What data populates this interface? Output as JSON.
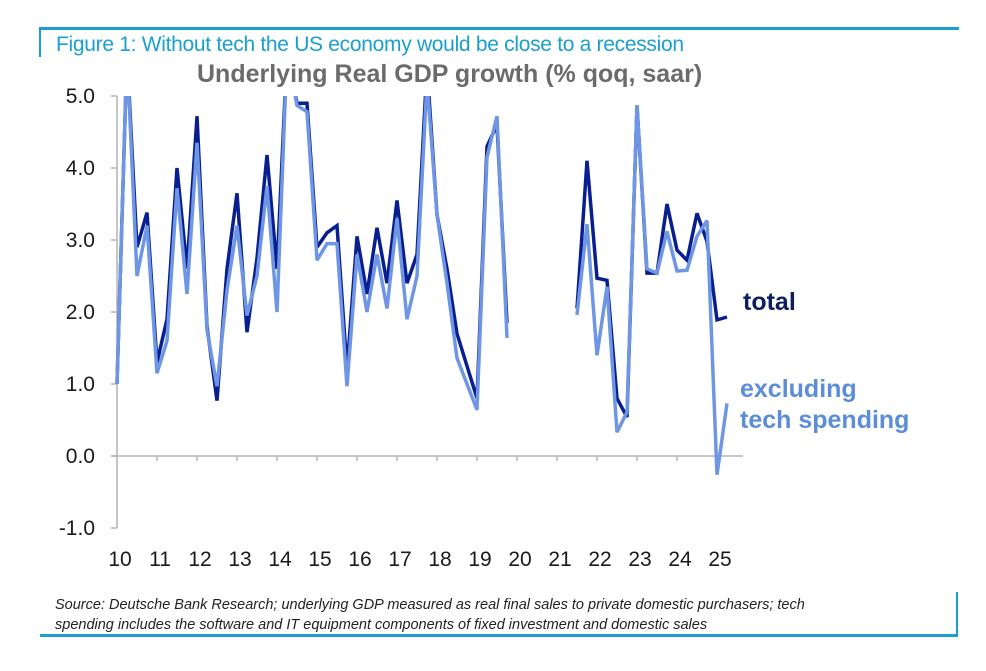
{
  "figure": {
    "label": "Figure 1: Without tech the US economy would be close to a recession",
    "source_line1": "Source: Deutsche Bank Research; underlying GDP measured as real final sales to private domestic purchasers; tech",
    "source_line2": "spending includes the software and IT equipment components of fixed investment and domestic sales"
  },
  "colors": {
    "accent": "#1a9fd1",
    "total": "#0a1f8f",
    "excluding_tech": "#6f96e4",
    "axis": "#b3b3b3"
  },
  "chart_data": {
    "type": "line",
    "title": "Underlying Real GDP growth (% qoq, saar)",
    "xlabel": "",
    "ylabel": "",
    "ylim": [
      -1.0,
      5.0
    ],
    "yticks": [
      "5.0",
      "4.0",
      "3.0",
      "2.0",
      "1.0",
      "0.0",
      "-1.0"
    ],
    "ytick_values": [
      5,
      4,
      3,
      2,
      1,
      0,
      -1
    ],
    "xticks": [
      "10",
      "11",
      "12",
      "13",
      "14",
      "15",
      "16",
      "17",
      "18",
      "19",
      "20",
      "21",
      "22",
      "23",
      "24",
      "25"
    ],
    "x_start": "2010Q1",
    "frequency": "quarterly",
    "legend": "right",
    "grid": false,
    "series": [
      {
        "name": "total",
        "values": [
          1.0,
          5.6,
          2.9,
          3.38,
          1.3,
          1.9,
          4.0,
          2.6,
          4.72,
          1.8,
          0.77,
          2.6,
          3.65,
          1.72,
          2.75,
          4.18,
          2.6,
          5.6,
          4.9,
          4.9,
          2.9,
          3.1,
          3.2,
          1.2,
          3.05,
          2.25,
          3.17,
          2.4,
          3.55,
          2.4,
          2.8,
          5.4,
          3.35,
          2.6,
          1.7,
          1.25,
          0.8,
          4.3,
          4.6,
          1.85,
          null,
          null,
          null,
          null,
          null,
          null,
          2.05,
          4.1,
          2.47,
          2.44,
          0.8,
          0.54,
          4.87,
          2.54,
          2.54,
          3.5,
          2.86,
          2.72,
          3.37,
          2.98,
          1.89,
          1.93
        ]
      },
      {
        "name": "excluding tech spending",
        "values": [
          1.0,
          5.6,
          2.5,
          3.2,
          1.15,
          1.6,
          3.72,
          2.25,
          4.35,
          1.75,
          0.97,
          2.3,
          3.2,
          1.95,
          2.5,
          3.75,
          2.0,
          5.6,
          4.87,
          4.78,
          2.72,
          2.95,
          2.95,
          0.97,
          2.8,
          2.0,
          2.8,
          2.05,
          3.3,
          1.9,
          2.5,
          5.2,
          3.35,
          2.4,
          1.36,
          1.0,
          0.64,
          4.15,
          4.72,
          1.64,
          null,
          null,
          null,
          null,
          null,
          null,
          1.96,
          3.22,
          1.4,
          2.35,
          0.33,
          0.61,
          4.87,
          2.6,
          2.54,
          3.12,
          2.57,
          2.58,
          3.05,
          3.27,
          -0.26,
          0.73
        ]
      }
    ],
    "legend_labels": {
      "total": "total",
      "excluding_line1": "excluding",
      "excluding_line2": "tech spending"
    }
  }
}
